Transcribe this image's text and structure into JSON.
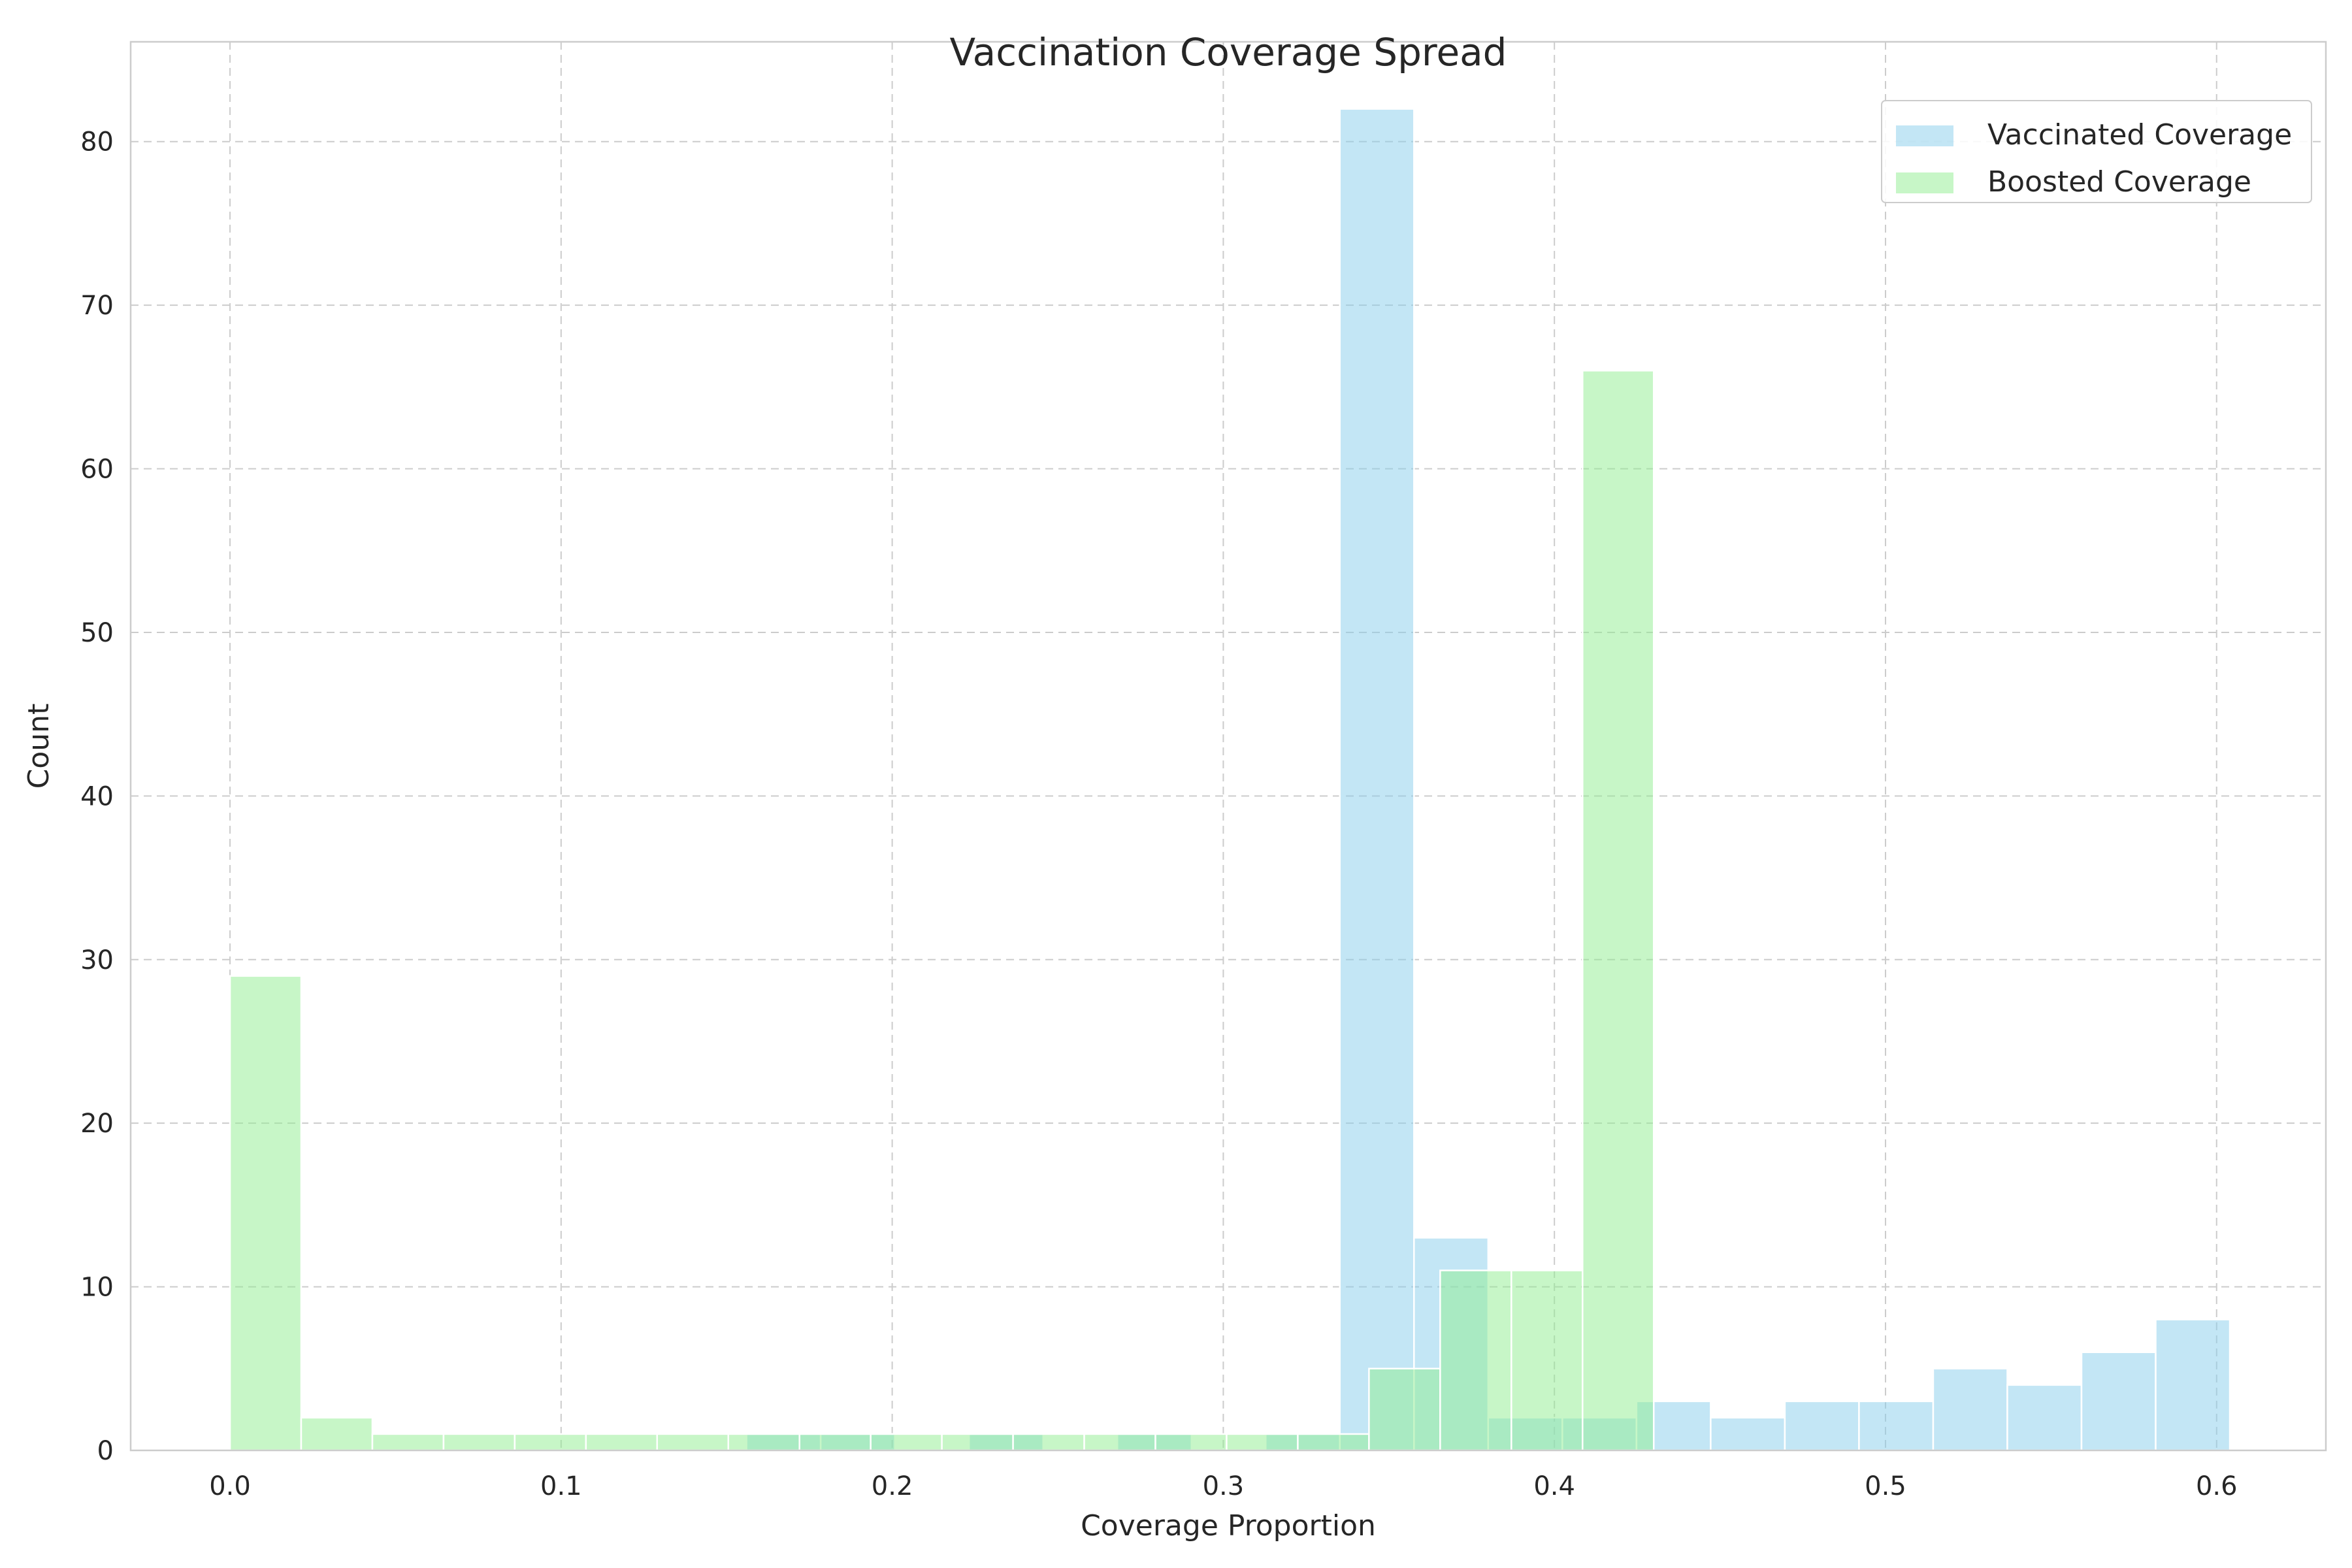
{
  "chart_data": {
    "type": "bar",
    "subtype": "overlapping-histogram",
    "title": "Vaccination Coverage Spread",
    "xlabel": "Coverage Proportion",
    "ylabel": "Count",
    "xlim": [
      -0.03,
      0.633
    ],
    "ylim": [
      0,
      86.1
    ],
    "xticks": [
      0.0,
      0.1,
      0.2,
      0.3,
      0.4,
      0.5,
      0.6
    ],
    "xtick_labels": [
      "0.0",
      "0.1",
      "0.2",
      "0.3",
      "0.4",
      "0.5",
      "0.6"
    ],
    "yticks": [
      0,
      10,
      20,
      30,
      40,
      50,
      60,
      70,
      80
    ],
    "ytick_labels": [
      "0",
      "10",
      "20",
      "30",
      "40",
      "50",
      "60",
      "70",
      "80"
    ],
    "grid": true,
    "legend_position": "top-right",
    "series": [
      {
        "name": "Vaccinated Coverage",
        "color": "#87ceeb",
        "opacity": 0.5,
        "bin_edges": [
          0.156,
          0.1784,
          0.2008,
          0.2232,
          0.2456,
          0.268,
          0.2904,
          0.3128,
          0.3352,
          0.3576,
          0.38,
          0.4024,
          0.4248,
          0.4472,
          0.4696,
          0.492,
          0.5144,
          0.5368,
          0.5592,
          0.5816,
          0.604
        ],
        "counts": [
          1,
          1,
          0,
          1,
          0,
          1,
          0,
          1,
          82,
          13,
          2,
          2,
          3,
          2,
          3,
          3,
          5,
          4,
          6,
          8
        ]
      },
      {
        "name": "Boosted Coverage",
        "color": "#90ee90",
        "opacity": 0.5,
        "bin_edges": [
          0.0,
          0.0215,
          0.043,
          0.0645,
          0.086,
          0.1075,
          0.129,
          0.1505,
          0.172,
          0.1935,
          0.215,
          0.2365,
          0.258,
          0.2795,
          0.301,
          0.3225,
          0.344,
          0.3655,
          0.387,
          0.4085,
          0.43
        ],
        "counts": [
          29,
          2,
          1,
          1,
          1,
          1,
          1,
          1,
          1,
          1,
          1,
          1,
          1,
          1,
          1,
          1,
          5,
          11,
          11,
          66
        ]
      }
    ]
  }
}
